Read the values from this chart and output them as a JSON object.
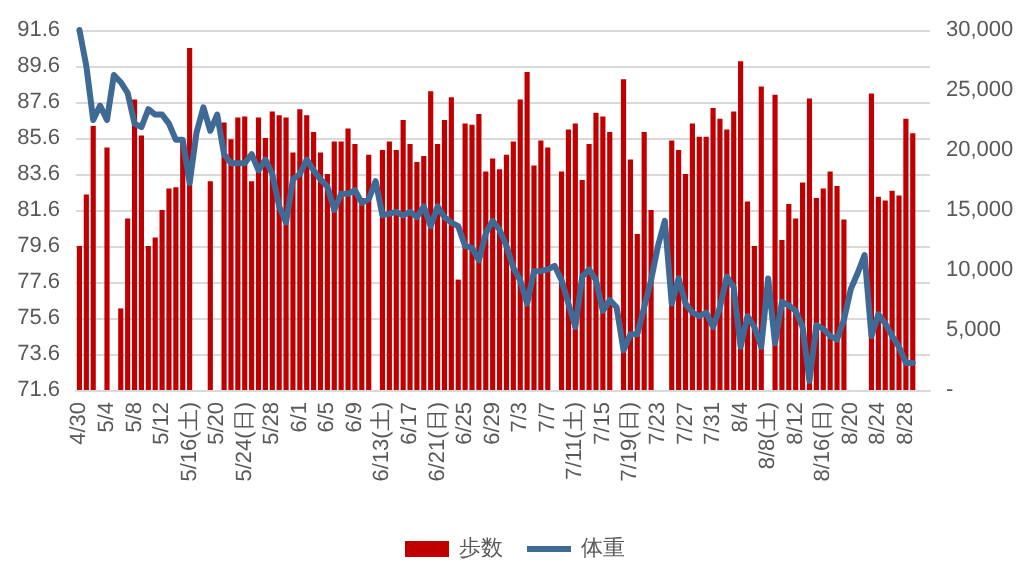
{
  "chart_data": {
    "type": "bar",
    "categories": [
      "4/30",
      null,
      null,
      null,
      "5/4",
      null,
      null,
      null,
      "5/8",
      null,
      null,
      null,
      "5/12",
      null,
      null,
      null,
      "5/16(土)",
      null,
      null,
      null,
      "5/20",
      null,
      null,
      null,
      "5/24(日)",
      null,
      null,
      null,
      "5/28",
      null,
      null,
      null,
      "6/1",
      null,
      null,
      null,
      "6/5",
      null,
      null,
      null,
      "6/9",
      null,
      null,
      null,
      "6/13(土)",
      null,
      null,
      null,
      "6/17",
      null,
      null,
      null,
      "6/21(日)",
      null,
      null,
      null,
      "6/25",
      null,
      null,
      null,
      "6/29",
      null,
      null,
      null,
      "7/3",
      null,
      null,
      null,
      "7/7",
      null,
      null,
      null,
      "7/11(土)",
      null,
      null,
      null,
      "7/15",
      null,
      null,
      null,
      "7/19(日)",
      null,
      null,
      null,
      "7/23",
      null,
      null,
      null,
      "7/27",
      null,
      null,
      null,
      "7/31",
      null,
      null,
      null,
      "8/4",
      null,
      null,
      null,
      "8/8(土)",
      null,
      null,
      null,
      "8/12",
      null,
      null,
      null,
      "8/16(日)",
      null,
      null,
      null,
      "8/20",
      null,
      null,
      null,
      "8/24",
      null,
      null,
      null,
      "8/28",
      null,
      null,
      null
    ],
    "series": [
      {
        "name": "歩数",
        "color": "#c00000",
        "axis": "y2",
        "values": [
          12000,
          16300,
          22000,
          null,
          20200,
          null,
          6800,
          14300,
          24200,
          21200,
          12000,
          12700,
          15000,
          16800,
          16900,
          20600,
          28500,
          null,
          null,
          17400,
          null,
          22300,
          20900,
          22700,
          22800,
          17400,
          22700,
          21000,
          23200,
          22900,
          22700,
          19800,
          23400,
          22900,
          21500,
          19800,
          18000,
          20700,
          20700,
          21800,
          20500,
          16000,
          19600,
          null,
          20000,
          20700,
          20000,
          22500,
          20500,
          19000,
          19500,
          24900,
          20500,
          22500,
          24400,
          9200,
          22200,
          22100,
          23000,
          18200,
          19300,
          18400,
          19600,
          20700,
          24200,
          26500,
          18700,
          20800,
          20200,
          null,
          18200,
          21700,
          22200,
          17500,
          20500,
          23100,
          22800,
          21500,
          null,
          25900,
          19200,
          13000,
          21500,
          15000,
          null,
          null,
          20800,
          20000,
          18000,
          22200,
          21100,
          21100,
          23500,
          22600,
          21700,
          23200,
          27400,
          15700,
          12000,
          25300,
          null,
          24600,
          12500,
          15500,
          14300,
          17300,
          24300,
          16000,
          16800,
          18200,
          17000,
          14200,
          null,
          null,
          null,
          24700,
          16100,
          15800,
          16600,
          16200,
          22600,
          21400,
          null,
          null
        ]
      },
      {
        "name": "体重",
        "type": "line",
        "color": "#3f6a96",
        "values": [
          91.6,
          89.6,
          86.6,
          87.4,
          86.6,
          89.1,
          88.7,
          88.1,
          86.4,
          86.2,
          87.2,
          86.9,
          86.9,
          86.4,
          85.5,
          85.5,
          83.1,
          85.9,
          87.3,
          86.0,
          86.9,
          84.7,
          84.2,
          84.2,
          84.2,
          84.7,
          83.8,
          84.4,
          83.6,
          81.8,
          80.9,
          83.3,
          83.6,
          84.4,
          83.8,
          83.3,
          82.9,
          81.6,
          82.5,
          82.5,
          82.7,
          82.0,
          82.2,
          83.2,
          81.3,
          81.4,
          81.5,
          81.3,
          81.5,
          81.2,
          81.8,
          80.7,
          81.8,
          81.2,
          80.9,
          80.7,
          79.6,
          79.5,
          78.8,
          80.3,
          81.0,
          80.5,
          79.6,
          78.4,
          77.7,
          76.4,
          78.2,
          78.2,
          78.3,
          78.5,
          77.7,
          76.4,
          75.1,
          77.9,
          78.3,
          77.7,
          76.0,
          76.6,
          76.2,
          73.8,
          74.7,
          74.7,
          76.2,
          77.7,
          79.6,
          81.0,
          76.4,
          77.8,
          76.4,
          75.9,
          75.7,
          75.9,
          75.1,
          76.2,
          77.9,
          77.3,
          74.0,
          75.7,
          75.1,
          74.0,
          77.8,
          74.2,
          76.5,
          76.3,
          76.0,
          75.1,
          72.1,
          75.2,
          75.0,
          74.6,
          74.4,
          75.5,
          77.2,
          78.1,
          79.1,
          74.6,
          75.8,
          75.3,
          74.6,
          74.0,
          73.1,
          73.1,
          null,
          null
        ]
      }
    ],
    "ylim": [
      71.6,
      91.6
    ],
    "yticks": [
      71.6,
      73.6,
      75.6,
      77.6,
      79.6,
      81.6,
      83.6,
      85.6,
      87.6,
      89.6,
      91.6
    ],
    "y2lim": [
      0,
      30000
    ],
    "y2ticks": [
      {
        "value": 0,
        "label": "-"
      },
      {
        "value": 5000,
        "label": "5,000"
      },
      {
        "value": 10000,
        "label": "10,000"
      },
      {
        "value": 15000,
        "label": "15,000"
      },
      {
        "value": 20000,
        "label": "20,000"
      },
      {
        "value": 25000,
        "label": "25,000"
      },
      {
        "value": 30000,
        "label": "30,000"
      }
    ],
    "grid": "y",
    "legend": "bottom",
    "marker": "none",
    "line_style": "solid"
  }
}
